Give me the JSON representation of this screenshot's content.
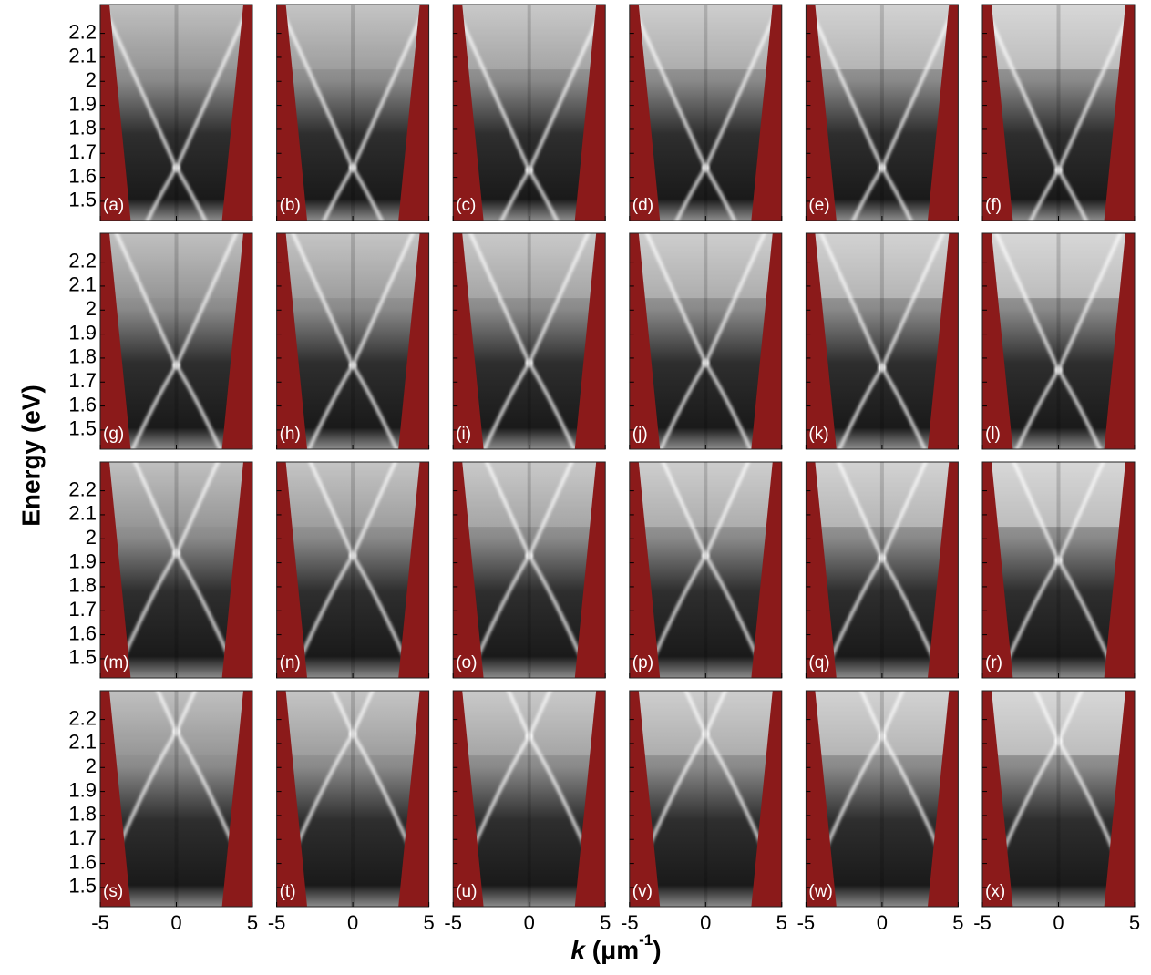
{
  "chart_data": {
    "type": "dispersion-grid",
    "ylabel": "Energy (eV)",
    "xlabel_parts": [
      "k",
      " (μm",
      "-1",
      ")"
    ],
    "xlim": [
      -5,
      5
    ],
    "ylim": [
      1.42,
      2.32
    ],
    "xticks": [
      -5,
      0,
      5
    ],
    "yticks": [
      1.5,
      1.6,
      1.7,
      1.8,
      1.9,
      2,
      2.1,
      2.2
    ],
    "columns": 6,
    "panels": [
      {
        "label": "(a)",
        "crossing": 1.64
      },
      {
        "label": "(b)",
        "crossing": 1.64
      },
      {
        "label": "(c)",
        "crossing": 1.63
      },
      {
        "label": "(d)",
        "crossing": 1.64
      },
      {
        "label": "(e)",
        "crossing": 1.64
      },
      {
        "label": "(f)",
        "crossing": 1.63
      },
      {
        "label": "(g)",
        "crossing": 1.77
      },
      {
        "label": "(h)",
        "crossing": 1.77
      },
      {
        "label": "(i)",
        "crossing": 1.78
      },
      {
        "label": "(j)",
        "crossing": 1.78
      },
      {
        "label": "(k)",
        "crossing": 1.76
      },
      {
        "label": "(l)",
        "crossing": 1.75
      },
      {
        "label": "(m)",
        "crossing": 1.94
      },
      {
        "label": "(n)",
        "crossing": 1.93
      },
      {
        "label": "(o)",
        "crossing": 1.93
      },
      {
        "label": "(p)",
        "crossing": 1.93
      },
      {
        "label": "(q)",
        "crossing": 1.92
      },
      {
        "label": "(r)",
        "crossing": 1.91
      },
      {
        "label": "(s)",
        "crossing": 2.15
      },
      {
        "label": "(t)",
        "crossing": 2.14
      },
      {
        "label": "(u)",
        "crossing": 2.13
      },
      {
        "label": "(v)",
        "crossing": 2.14
      },
      {
        "label": "(w)",
        "crossing": 2.13
      },
      {
        "label": "(x)",
        "crossing": 2.11
      }
    ]
  }
}
